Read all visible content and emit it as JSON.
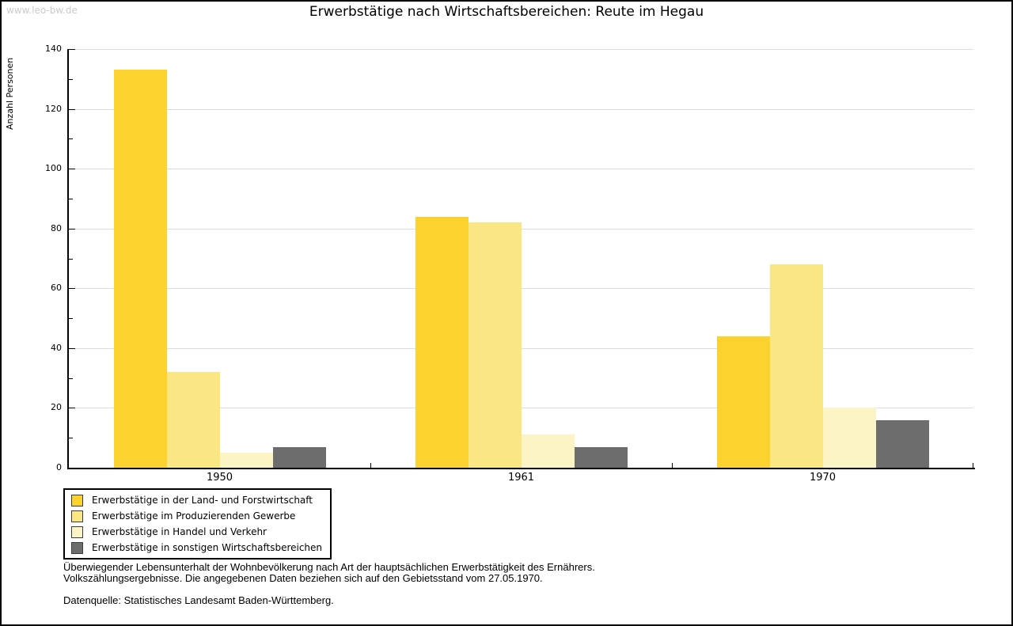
{
  "watermark": "www.leo-bw.de",
  "chart_data": {
    "type": "bar",
    "title": "Erwerbstätige nach Wirtschaftsbereichen: Reute im Hegau",
    "ylabel": "Anzahl Personen",
    "xlabel": "",
    "categories": [
      "1950",
      "1961",
      "1970"
    ],
    "series": [
      {
        "name": "Erwerbstätige in der Land- und Forstwirtschaft",
        "color": "#fcd32e",
        "values": [
          133,
          84,
          44
        ]
      },
      {
        "name": "Erwerbstätige im Produzierenden Gewerbe",
        "color": "#fae783",
        "values": [
          32,
          82,
          68
        ]
      },
      {
        "name": "Erwerbstätige in Handel und Verkehr",
        "color": "#fcf4c5",
        "values": [
          5,
          11,
          20
        ]
      },
      {
        "name": "Erwerbstätige in sonstigen Wirtschaftsbereichen",
        "color": "#6d6d6d",
        "values": [
          7,
          7,
          16
        ]
      }
    ],
    "ylim": [
      0,
      140
    ],
    "y_tick_step": 20,
    "y_minor_tick_step": 10,
    "grid": "horizontal-major",
    "grid_color": "#dcdcdc",
    "axis_color": "#000000",
    "legend_position": "bottom-left"
  },
  "footnotes": {
    "line1": "Überwiegender Lebensunterhalt der Wohnbevölkerung nach Art der hauptsächlichen Erwerbstätigkeit des Ernährers.",
    "line2": "Volkszählungsergebnisse. Die angegebenen Daten beziehen sich auf den Gebietsstand vom 27.05.1970.",
    "source": "Datenquelle: Statistisches Landesamt Baden-Württemberg."
  }
}
